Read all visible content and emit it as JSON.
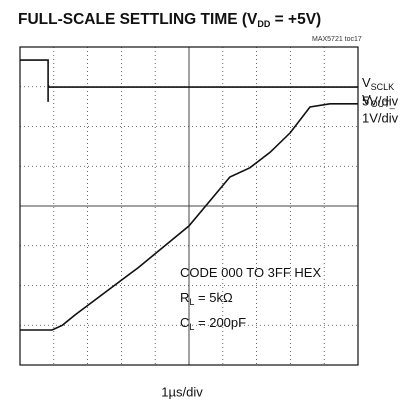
{
  "chart_data": {
    "type": "line",
    "title": {
      "text": "FULL-SCALE SETTLING TIME  (V",
      "sub": "DD",
      "after": " = +5V)"
    },
    "subtitle": "MAX5721 toc17",
    "xlabel": "1µs/div",
    "xlim": [
      0,
      10
    ],
    "ylim": [
      0,
      8
    ],
    "xticks": [
      0,
      1,
      2,
      3,
      4,
      5,
      6,
      7,
      8,
      9,
      10
    ],
    "yticks": [
      0,
      1,
      2,
      3,
      4,
      5,
      6,
      7,
      8
    ],
    "grid": true,
    "series": [
      {
        "name": {
          "text": "V",
          "sub": "SCLK"
        },
        "scale": "5V/div",
        "color": "#111111",
        "x": [
          0,
          0.83,
          0.83,
          0.83,
          0.86,
          10
        ],
        "values": [
          7.67,
          7.67,
          6.62,
          7.05,
          6.99,
          6.99
        ]
      },
      {
        "name": {
          "text": "V",
          "sub": "OUT_"
        },
        "scale": "1V/div",
        "color": "#111111",
        "x": [
          0,
          0.95,
          1.25,
          1.63,
          3.5,
          5.0,
          6.21,
          6.8,
          7.4,
          7.99,
          8.58,
          9.17,
          10
        ],
        "values": [
          0.88,
          0.88,
          1.0,
          1.26,
          2.45,
          3.5,
          4.73,
          4.96,
          5.35,
          5.84,
          6.49,
          6.57,
          6.57
        ]
      }
    ],
    "annotations": [
      {
        "text": "CODE 000 TO 3FF HEX"
      },
      {
        "text": "R",
        "sub": "L",
        "after": " = 5kΩ"
      },
      {
        "text": "C",
        "sub": "L",
        "after": " = 200pF"
      }
    ]
  }
}
